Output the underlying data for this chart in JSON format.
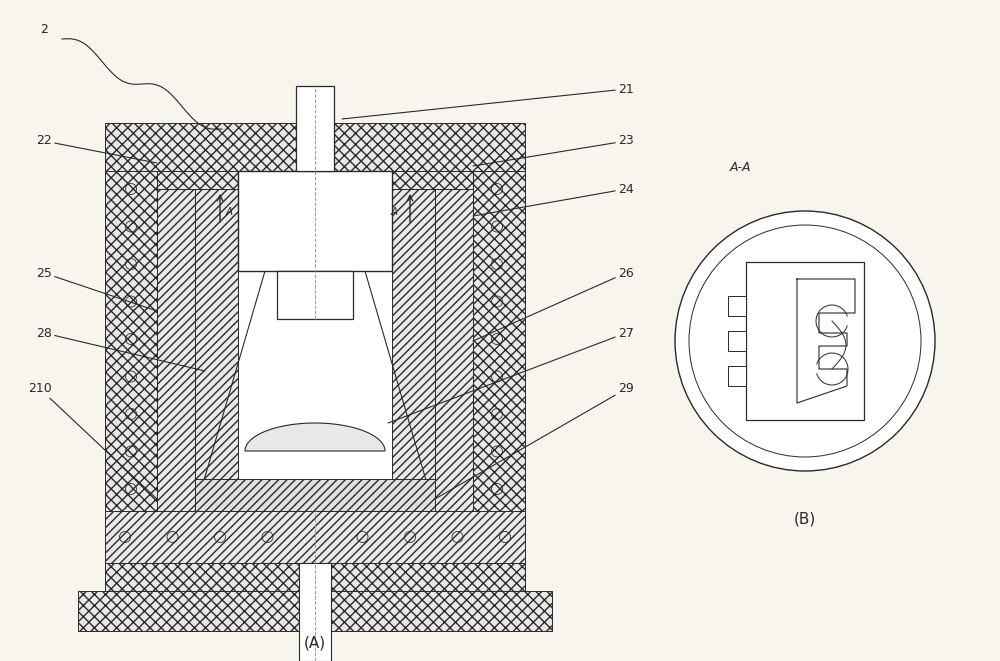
{
  "bg_color": "#f8f5ef",
  "line_color": "#2a2a2a",
  "title_A": "(A)",
  "title_B": "(B)",
  "label_AA": "A-A"
}
